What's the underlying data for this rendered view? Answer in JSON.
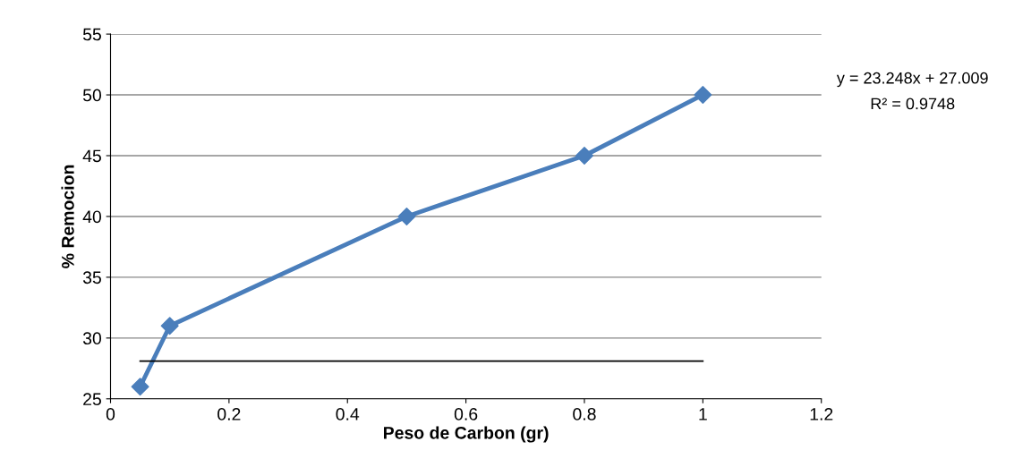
{
  "chart_data": {
    "type": "line",
    "xlabel": "Peso de Carbon (gr)",
    "ylabel": "% Remocion",
    "x": [
      0.05,
      0.1,
      0.5,
      0.8,
      1
    ],
    "series": [
      {
        "color": "#4a7ebb",
        "values": [
          26,
          31,
          40,
          45,
          50
        ],
        "marker": "diamond"
      },
      {
        "type": "line",
        "color": "#000000",
        "x": [
          0.05,
          1
        ],
        "values": [
          28.1,
          28.1
        ],
        "marker": "none"
      }
    ],
    "xlim": [
      0,
      1.2
    ],
    "xticks": [
      0,
      0.2,
      0.4,
      0.6,
      0.8,
      1,
      1.2
    ],
    "ylim": [
      25,
      55
    ],
    "yticks": [
      25,
      30,
      35,
      40,
      45,
      50,
      55
    ],
    "grid": "y",
    "legend": false,
    "annotations": [
      "y = 23.248x + 27.009",
      "R² = 0.9748"
    ]
  }
}
